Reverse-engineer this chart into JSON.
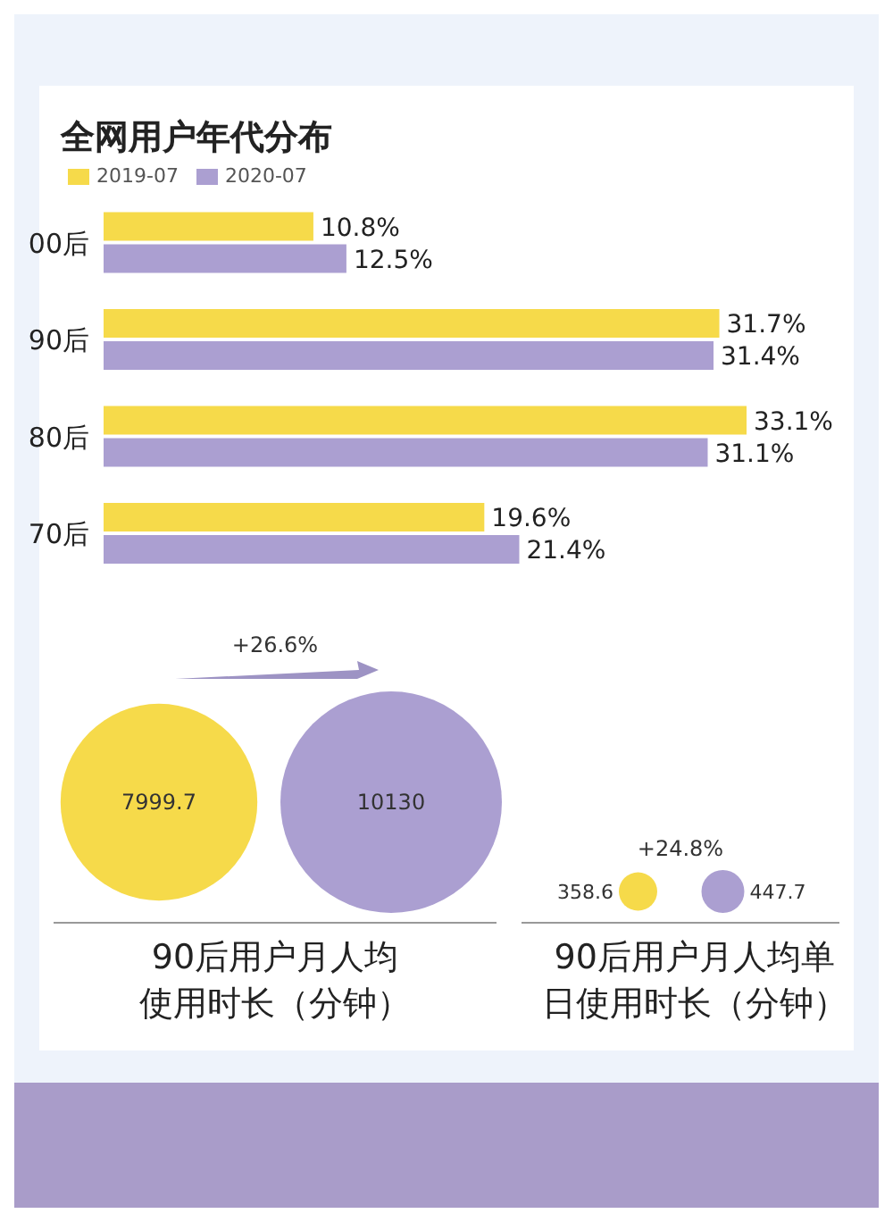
{
  "chart_data": [
    {
      "type": "bar",
      "orientation": "horizontal",
      "title": "全网用户年代分布",
      "categories": [
        "00后",
        "90后",
        "80后",
        "70后"
      ],
      "series": [
        {
          "name": "2019-07",
          "color": "#f6da4a",
          "values": [
            10.8,
            31.7,
            33.1,
            19.6
          ],
          "value_labels": [
            "10.8%",
            "31.7%",
            "33.1%",
            "19.6%"
          ]
        },
        {
          "name": "2020-07",
          "color": "#ab9fd1",
          "values": [
            12.5,
            31.4,
            31.1,
            21.4
          ],
          "value_labels": [
            "12.5%",
            "31.4%",
            "31.1%",
            "21.4%"
          ]
        }
      ],
      "legend": "top left",
      "tick_labels": "y"
    },
    {
      "type": "other",
      "categories": [
        null,
        null
      ],
      "values": [
        7999.7,
        10130
      ],
      "colors": [
        "#f6da4a",
        "#ab9fd1"
      ],
      "data_labels": true,
      "xlabel": "90后用户月人均使用时长（分钟）",
      "annotations": [
        "+26.6%"
      ]
    },
    {
      "type": "other",
      "categories": [
        null,
        null
      ],
      "values": [
        358.6,
        447.7
      ],
      "colors": [
        "#f6da4a",
        "#ab9fd1"
      ],
      "data_labels": true,
      "xlabel": "90后用户月人均单日使用时长（分钟）",
      "annotations": [
        "+24.8%"
      ]
    }
  ]
}
